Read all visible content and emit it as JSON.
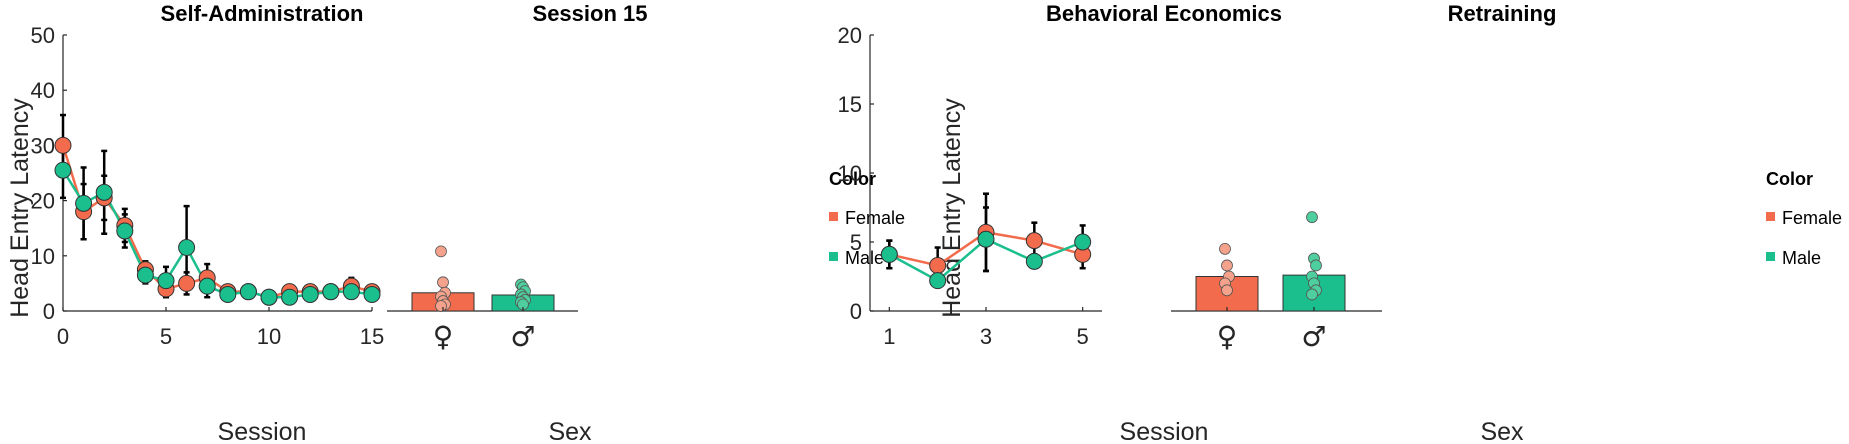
{
  "colors": {
    "female": "#f26b4c",
    "male": "#1bbe8d",
    "female_light": "#f4a28c",
    "male_light": "#4fcf9f",
    "axis": "#262626"
  },
  "legend": {
    "title": "Color",
    "female": "Female",
    "male": "Male"
  },
  "chart_data": [
    {
      "type": "line",
      "title": "Self-Administration",
      "xlabel": "Session",
      "ylabel": "Head Entry Latency",
      "xlim": [
        0,
        15
      ],
      "ylim": [
        0,
        50
      ],
      "xticks": [
        0,
        5,
        10,
        15
      ],
      "yticks": [
        0,
        10,
        20,
        30,
        40,
        50
      ],
      "x": [
        0,
        1,
        2,
        3,
        4,
        5,
        6,
        7,
        8,
        9,
        10,
        11,
        12,
        13,
        14,
        15
      ],
      "series": [
        {
          "name": "Female",
          "values": [
            30,
            18,
            20.5,
            15.5,
            7.5,
            4,
            5,
            6,
            3.5,
            3.5,
            2.5,
            3.5,
            3.5,
            3.5,
            4.5,
            3.5
          ],
          "err": [
            5.5,
            5,
            4,
            3,
            1.5,
            1.5,
            2,
            2.5,
            1,
            0.8,
            1,
            0.8,
            0.8,
            0.8,
            1.5,
            1
          ]
        },
        {
          "name": "Male",
          "values": [
            25.5,
            19.5,
            21.5,
            14.5,
            6.5,
            5.5,
            11.5,
            4.5,
            3,
            3.5,
            2.5,
            2.5,
            3,
            3.5,
            3.5,
            3
          ],
          "err": [
            5,
            6.5,
            7.5,
            3,
            1.5,
            2.5,
            7.5,
            2,
            1,
            0.7,
            1,
            0.8,
            0.8,
            0.8,
            1,
            1
          ]
        }
      ]
    },
    {
      "type": "bar",
      "title": "Session 15",
      "xlabel": "Sex",
      "ylim": [
        0,
        50
      ],
      "categories": [
        "♀",
        "♂"
      ],
      "values": [
        3.3,
        2.9
      ],
      "points": [
        [
          10.8,
          5.2,
          3.3,
          2.6,
          1.8,
          1.2,
          0.9
        ],
        [
          4.8,
          4.3,
          3.6,
          3.0,
          2.5,
          2.0,
          1.6,
          1.2
        ]
      ]
    },
    {
      "type": "line",
      "title": "Behavioral Economics",
      "xlabel": "Session",
      "ylabel": "Head Entry Latency",
      "xlim": [
        0.6,
        5.4
      ],
      "ylim": [
        0,
        20
      ],
      "xticks": [
        1,
        3,
        5
      ],
      "yticks": [
        0,
        5,
        10,
        15,
        20
      ],
      "x": [
        1,
        2,
        3,
        4,
        5
      ],
      "series": [
        {
          "name": "Female",
          "values": [
            4.1,
            3.3,
            5.7,
            5.1,
            4.1
          ],
          "err": [
            1.0,
            1.3,
            2.8,
            1.3,
            1.0
          ]
        },
        {
          "name": "Male",
          "values": [
            4.1,
            2.2,
            5.2,
            3.6,
            5.0
          ],
          "err": [
            1.0,
            0.3,
            2.3,
            0.5,
            1.2
          ]
        }
      ]
    },
    {
      "type": "bar",
      "title": "Retraining",
      "xlabel": "Sex",
      "ylim": [
        0,
        20
      ],
      "categories": [
        "♀",
        "♂"
      ],
      "values": [
        2.5,
        2.6
      ],
      "points": [
        [
          4.5,
          3.3,
          2.5,
          2.0,
          1.5
        ],
        [
          6.8,
          3.8,
          3.3,
          2.5,
          2.0,
          1.5,
          1.2
        ]
      ]
    }
  ]
}
